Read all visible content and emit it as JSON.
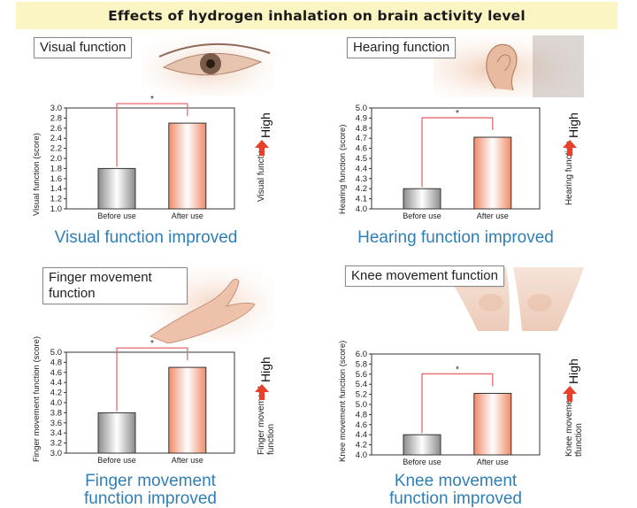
{
  "page_title": "Effects of hydrogen inhalation on brain activity level",
  "high_label": "High",
  "colors": {
    "title_bg": "#fbf5c4",
    "caption": "#2f7fb5",
    "bracket": "#e86a6a",
    "arrow": "#e8402a",
    "bar_before": "#b5b5b5",
    "bar_after": "#f08a68"
  },
  "chart_data": [
    {
      "type": "bar",
      "label": "Visual function",
      "ylabel": "Visual function (score)",
      "side_label": [
        "Visual function"
      ],
      "categories": [
        "Before use",
        "After use"
      ],
      "values": [
        1.8,
        2.7
      ],
      "ylim": [
        1.0,
        3.0
      ],
      "ytick_step": 0.2,
      "ytick_decimals": 1,
      "significance": "*",
      "caption": [
        "Visual function improved"
      ]
    },
    {
      "type": "bar",
      "label": "Hearing function",
      "ylabel": "Hearing function (score)",
      "side_label": [
        "Hearing function"
      ],
      "categories": [
        "Before use",
        "After use"
      ],
      "values": [
        4.2,
        4.71
      ],
      "ylim": [
        4.0,
        5.0
      ],
      "ytick_step": 0.1,
      "ytick_decimals": 1,
      "significance": "*",
      "caption": [
        "Hearing function improved"
      ]
    },
    {
      "type": "bar",
      "label": "Finger movement function",
      "ylabel": "Finger movement function (score)",
      "side_label": [
        "Finger movement",
        "function"
      ],
      "categories": [
        "Before use",
        "After use"
      ],
      "values": [
        3.8,
        4.7
      ],
      "ylim": [
        3.0,
        5.0
      ],
      "ytick_step": 0.2,
      "ytick_decimals": 1,
      "significance": "*",
      "caption": [
        "Finger movement",
        "function improved"
      ]
    },
    {
      "type": "bar",
      "label": "Knee movement function",
      "ylabel": "Knee movement function (score)",
      "side_label": [
        "Knee movemen",
        "tfunction"
      ],
      "categories": [
        "Before use",
        "After use"
      ],
      "values": [
        4.4,
        5.22
      ],
      "ylim": [
        4.0,
        6.0
      ],
      "ytick_step": 0.2,
      "ytick_decimals": 1,
      "significance": "*",
      "caption": [
        "Knee movement",
        "function improved"
      ]
    }
  ]
}
